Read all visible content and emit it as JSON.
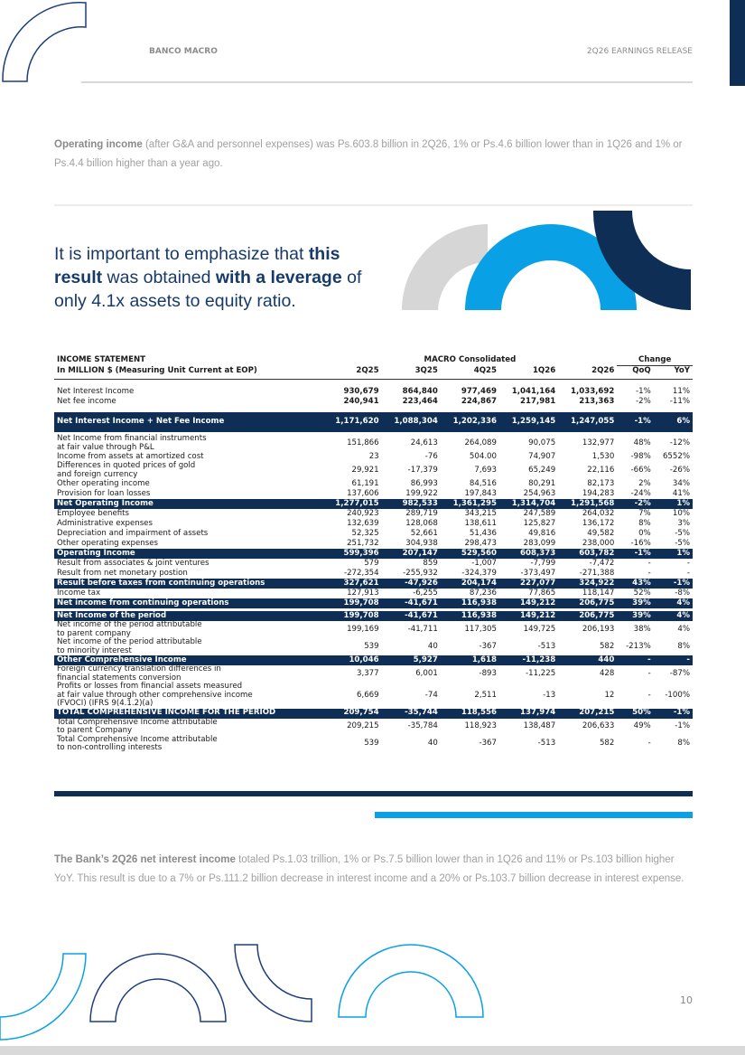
{
  "header": {
    "company": "BANCO MACRO",
    "report": "2Q26 EARNINGS RELEASE"
  },
  "paragraphs": [
    {
      "bold": "Operating income",
      "text": " (after G&A and personnel expenses) was Ps.603.8 billion in 2Q26, 1% or Ps.4.6 billion lower than in 1Q26 and 1% or Ps.4.4 billion higher than a year ago."
    },
    {
      "bold": "The Bank’s 2Q26 net interest income",
      "text": " totaled Ps.1.03 trillion, 1% or Ps.7.5 billion lower than in 1Q26 and 11% or Ps.103 billion higher YoY. This result is due to a 7% or Ps.111.2 billion decrease in interest income and a 20% or Ps.103.7 billion decrease in interest expense."
    }
  ],
  "callout": [
    "It is important to emphasize that ",
    "this result",
    " was obtained ",
    "with a leverage",
    " of only 4.1x assets to equity ratio."
  ],
  "table": {
    "title": "INCOME STATEMENT",
    "group": "MACRO Consolidated",
    "change": "Change",
    "unit": "In MILLION $ (Measuring Unit Current at EOP)",
    "columns": [
      "2Q25",
      "3Q25",
      "4Q25",
      "1Q26",
      "2Q26",
      "QoQ",
      "YoY"
    ],
    "rows": [
      [
        "Net Interest Income",
        "930,679",
        "864,840",
        "977,469",
        "1,041,164",
        "1,033,692",
        "-1%",
        "11%"
      ],
      [
        "Net fee income",
        "240,941",
        "223,464",
        "224,867",
        "217,981",
        "213,363",
        "-2%",
        "-11%"
      ],
      [
        "Net Interest Income + Net Fee Income",
        "1,171,620",
        "1,088,304",
        "1,202,336",
        "1,259,145",
        "1,247,055",
        "-1%",
        "6%"
      ],
      [
        "Net Income from financial instruments\nat fair value through P&L",
        "151,866",
        "24,613",
        "264,089",
        "90,075",
        "132,977",
        "48%",
        "-12%"
      ],
      [
        "Income from assets at amortized cost",
        "23",
        "-76",
        "504.00",
        "74,907",
        "1,530",
        "-98%",
        "6552%"
      ],
      [
        "Differences in quoted prices of gold\nand foreign currency",
        "29,921",
        "-17,379",
        "7,693",
        "65,249",
        "22,116",
        "-66%",
        "-26%"
      ],
      [
        "Other operating income",
        "61,191",
        "86,993",
        "84,516",
        "80,291",
        "82,173",
        "2%",
        "34%"
      ],
      [
        "Provision for loan losses",
        "137,606",
        "199,922",
        "197,843",
        "254,963",
        "194,283",
        "-24%",
        "41%"
      ],
      [
        "Net Operating Income",
        "1,277,015",
        "982,533",
        "1,361,295",
        "1,314,704",
        "1,291,568",
        "-2%",
        "1%"
      ],
      [
        "Employee benefits",
        "240,923",
        "289,719",
        "343,215",
        "247,589",
        "264,032",
        "7%",
        "10%"
      ],
      [
        "Administrative expenses",
        "132,639",
        "128,068",
        "138,611",
        "125,827",
        "136,172",
        "8%",
        "3%"
      ],
      [
        "Depreciation and impairment of assets",
        "52,325",
        "52,661",
        "51,436",
        "49,816",
        "49,582",
        "0%",
        "-5%"
      ],
      [
        "Other operating expenses",
        "251,732",
        "304,938",
        "298,473",
        "283,099",
        "238,000",
        "-16%",
        "-5%"
      ],
      [
        "Operating Income",
        "599,396",
        "207,147",
        "529,560",
        "608,373",
        "603,782",
        "-1%",
        "1%"
      ],
      [
        "Result from associates & joint ventures",
        "579",
        "859",
        "-1,007",
        "-7,799",
        "-7,472",
        "-",
        "-"
      ],
      [
        "Result from net monetary postion",
        "-272,354",
        "-255,932",
        "-324,379",
        "-373,497",
        "-271,388",
        "-",
        "-"
      ],
      [
        "Result before taxes from continuing operations",
        "327,621",
        "-47,926",
        "204,174",
        "227,077",
        "324,922",
        "43%",
        "-1%"
      ],
      [
        "Income tax",
        "127,913",
        "-6,255",
        "87,236",
        "77,865",
        "118,147",
        "52%",
        "-8%"
      ],
      [
        "Net income from continuing operations",
        "199,708",
        "-41,671",
        "116,938",
        "149,212",
        "206,775",
        "39%",
        "4%"
      ],
      [
        "Net Income of the period",
        "199,708",
        "-41,671",
        "116,938",
        "149,212",
        "206,775",
        "39%",
        "4%"
      ],
      [
        "Net income of the period attributable\nto parent company",
        "199,169",
        "-41,711",
        "117,305",
        "149,725",
        "206,193",
        "38%",
        "4%"
      ],
      [
        "Net income of the period attributable\nto minority interest",
        "539",
        "40",
        "-367",
        "-513",
        "582",
        "-213%",
        "8%"
      ],
      [
        "Other Comprehensive Income",
        "10,046",
        "5,927",
        "1,618",
        "-11,238",
        "440",
        "-",
        "-"
      ],
      [
        "Foreign currency translation differences in\nfinancial statements conversion",
        "3,377",
        "6,001",
        "-893",
        "-11,225",
        "428",
        "-",
        "-87%"
      ],
      [
        "Profits or losses from financial assets measured\nat fair value  through other comprehensive income\n(FVOCI)  (IFRS 9(4.1.2)(a)",
        "6,669",
        "-74",
        "2,511",
        "-13",
        "12",
        "-",
        "-100%"
      ],
      [
        "TOTAL COMPREHENSIVE INCOME FOR THE PERIOD",
        "209,754",
        "-35,744",
        "118,556",
        "137,974",
        "207,215",
        "50%",
        "-1%"
      ],
      [
        "Total Comprehensive Income attributable\nto parent Company",
        "209,215",
        "-35,784",
        "118,923",
        "138,487",
        "206,633",
        "49%",
        "-1%"
      ],
      [
        "Total Comprehensive Income attributable\nto non-controlling interests",
        "539",
        "40",
        "-367",
        "-513",
        "582",
        "-",
        "8%"
      ]
    ]
  },
  "page_number": "10"
}
